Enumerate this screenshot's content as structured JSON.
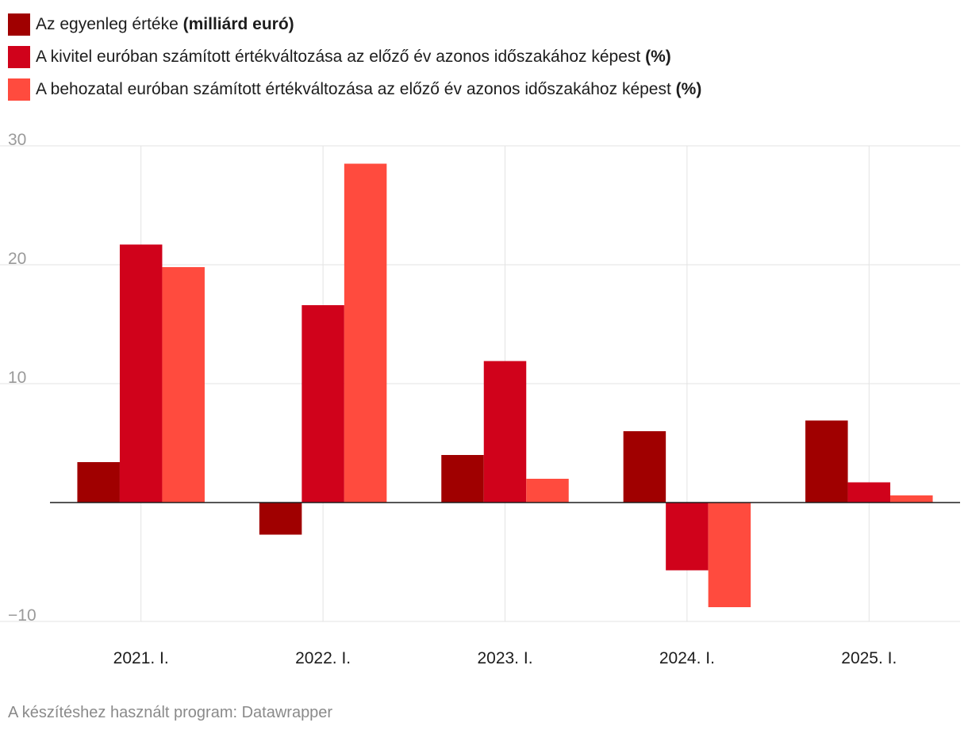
{
  "chart_data": {
    "type": "bar",
    "title": "",
    "xlabel": "",
    "ylabel": "",
    "ylim": [
      -10,
      30
    ],
    "yticks": [
      "30",
      "20",
      "10",
      "−10"
    ],
    "yticks_values": [
      30,
      20,
      10,
      -10
    ],
    "grid": true,
    "legend_placement": "top-left",
    "categories": [
      "2021. I.",
      "2022. I.",
      "2023. I.",
      "2024. I.",
      "2025. I."
    ],
    "series": [
      {
        "name": "Az egyenleg értéke",
        "name_suffix": "(milliárd euró)",
        "color": "#a00000",
        "values": [
          3.4,
          -2.7,
          4.0,
          6.0,
          6.9
        ]
      },
      {
        "name": "A kivitel euróban számított értékváltozása az előző év azonos időszakához képest",
        "name_suffix": "(%)",
        "color": "#d0021b",
        "values": [
          21.7,
          16.6,
          11.9,
          -5.7,
          1.7
        ]
      },
      {
        "name": "A behozatal euróban számított értékváltozása az előző év azonos időszakához képest",
        "name_suffix": "(%)",
        "color": "#ff4b3e",
        "values": [
          19.8,
          28.5,
          2.0,
          -8.8,
          0.6
        ]
      }
    ]
  },
  "footer": {
    "credit": "A készítéshez használt program: Datawrapper"
  }
}
